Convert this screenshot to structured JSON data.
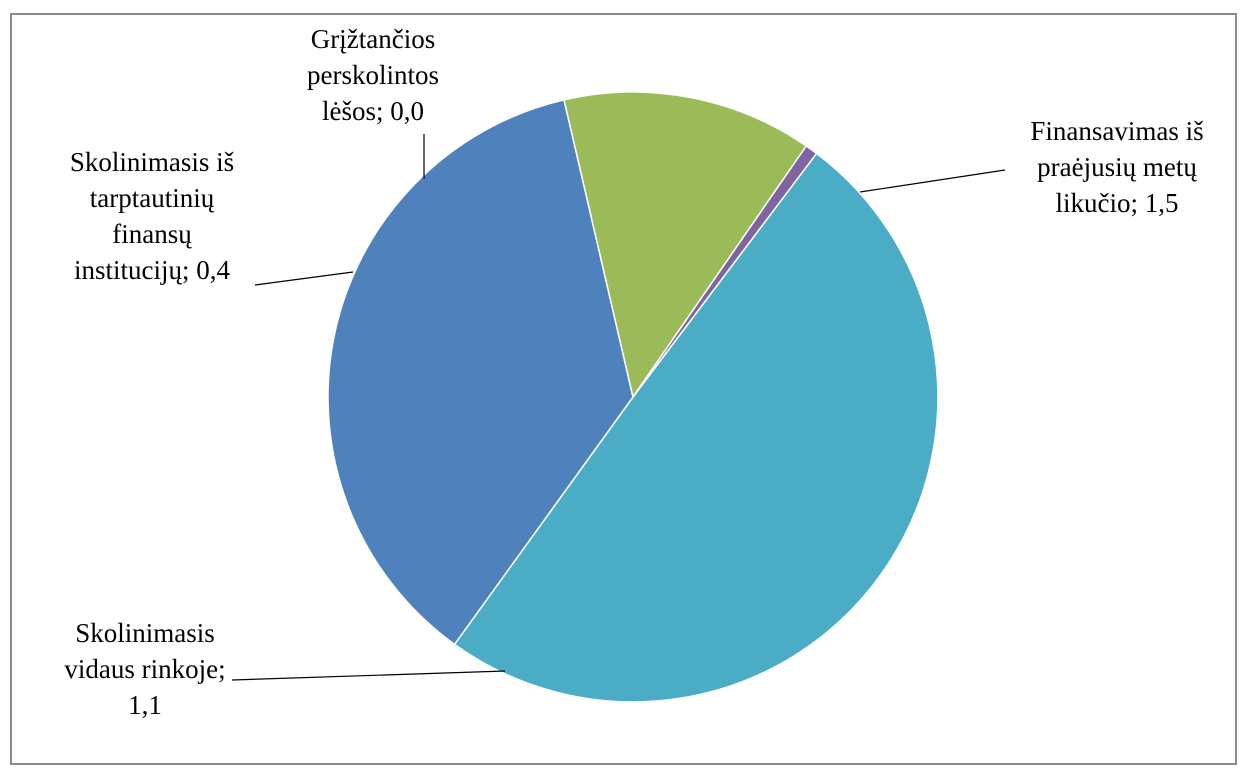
{
  "chart_data": {
    "type": "pie",
    "slices": [
      {
        "label_lines": [
          "Finansavimas iš",
          "praėjusių metų",
          "likučio; 1,5"
        ],
        "value": 1.5,
        "color": "#4bacc6"
      },
      {
        "label_lines": [
          "Skolinimasis",
          "vidaus rinkoje;",
          "1,1"
        ],
        "value": 1.1,
        "color": "#4f81bd"
      },
      {
        "label_lines": [
          "Skolinimasis iš",
          "tarptautinių",
          "finansų",
          "institucijų; 0,4"
        ],
        "value": 0.4,
        "color": "#9bbb59"
      },
      {
        "label_lines": [
          "Grįžtančios",
          "perskolintos",
          "lėšos; 0,0"
        ],
        "value": 0.02,
        "color": "#8064a2"
      }
    ]
  }
}
